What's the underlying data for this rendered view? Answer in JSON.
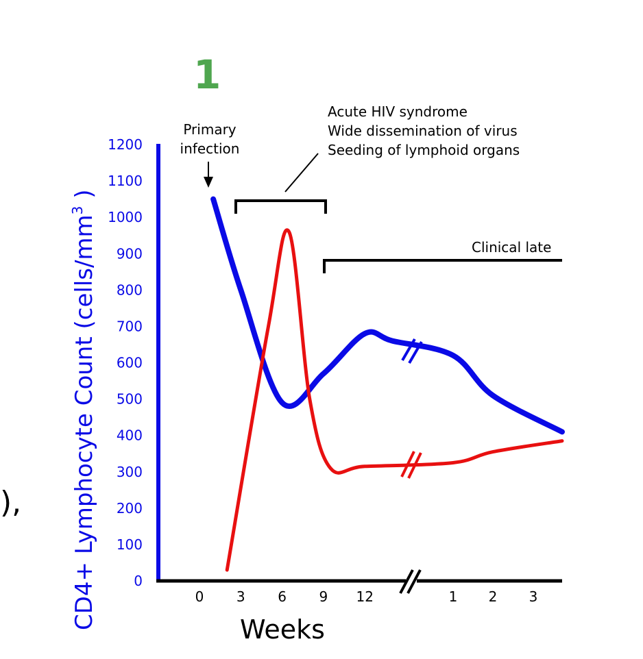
{
  "panel_label": "1",
  "edge_text": "),",
  "colors": {
    "cd4": "#0a0ae6",
    "viral": "#e81010",
    "axis_cd4": "#0a0ae6",
    "axis_x": "#000000",
    "panel": "#4fa64f"
  },
  "chart_data": {
    "type": "line",
    "title": "",
    "xlabel": "Weeks",
    "ylabel": "CD4+ Lymphocyte Count (cells/mm",
    "ylabel_sup": "3",
    "ylabel_close": " )",
    "ylim": [
      0,
      1200
    ],
    "yticks": [
      "0",
      "100",
      "200",
      "300",
      "400",
      "500",
      "600",
      "700",
      "800",
      "900",
      "1000",
      "1100",
      "1200"
    ],
    "xticks_weeks": [
      "0",
      "3",
      "6",
      "9",
      "12"
    ],
    "xticks_years": [
      "1",
      "2",
      "3"
    ],
    "grid": false,
    "legend": "none",
    "series": [
      {
        "key": "cd4",
        "points": [
          [
            1,
            1050
          ],
          [
            3,
            800
          ],
          [
            6,
            490
          ],
          [
            9,
            570
          ],
          [
            12,
            680
          ],
          [
            14,
            660
          ],
          [
            "y1",
            620
          ],
          [
            "y2",
            510
          ],
          [
            "y3",
            410
          ]
        ]
      },
      {
        "key": "viral",
        "points": [
          [
            2,
            30
          ],
          [
            5,
            700
          ],
          [
            6.5,
            960
          ],
          [
            8,
            500
          ],
          [
            9.5,
            310
          ],
          [
            12,
            315
          ],
          [
            "y1",
            325
          ],
          [
            "y2",
            355
          ],
          [
            "y3",
            385
          ]
        ]
      }
    ],
    "annotations": {
      "primary_infection": [
        "Primary",
        "infection"
      ],
      "acute": [
        "Acute HIV syndrome",
        "Wide dissemination of virus",
        "Seeding of lymphoid organs"
      ],
      "clinical": "Clinical late"
    }
  }
}
